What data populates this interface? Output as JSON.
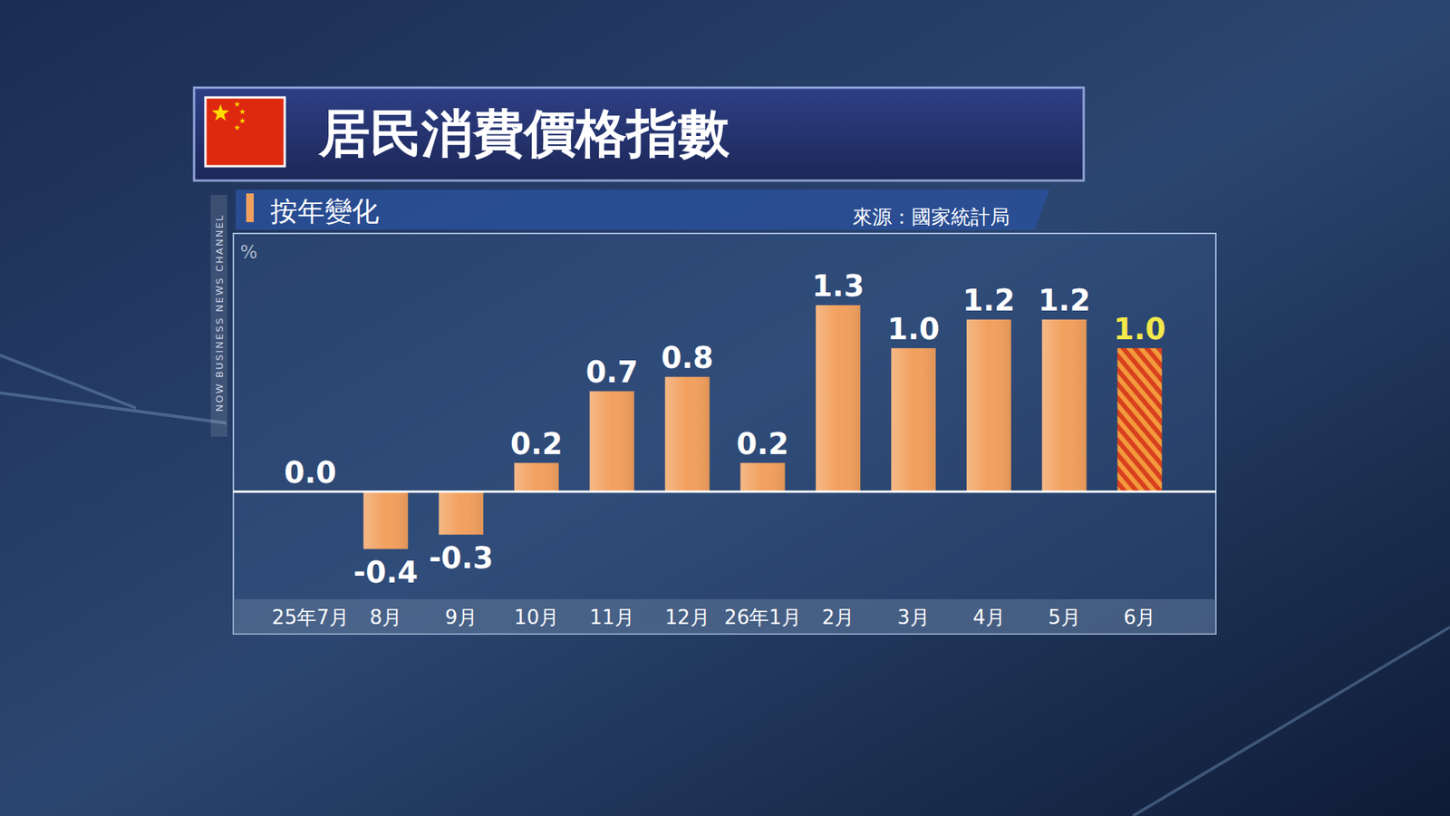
{
  "chart_data": {
    "type": "bar",
    "title": "居民消費價格指數",
    "subtitle": "按年變化",
    "source": "來源：國家統計局",
    "unit": "%",
    "watermark": "NOW BUSINESS NEWS CHANNEL",
    "categories": [
      "25年7月",
      "8月",
      "9月",
      "10月",
      "11月",
      "12月",
      "26年1月",
      "2月",
      "3月",
      "4月",
      "5月",
      "6月"
    ],
    "values": [
      0.0,
      -0.4,
      -0.3,
      0.2,
      0.7,
      0.8,
      0.2,
      1.3,
      1.0,
      1.2,
      1.2,
      1.0
    ],
    "value_labels": [
      "0.0",
      "-0.4",
      "-0.3",
      "0.2",
      "0.7",
      "0.8",
      "0.2",
      "1.3",
      "1.0",
      "1.2",
      "1.2",
      "1.0"
    ],
    "colors": [
      "#f2a05e",
      "#f2a05e",
      "#f2a05e",
      "#f2a05e",
      "#f2a05e",
      "#f2a05e",
      "#f2a05e",
      "#f2a05e",
      "#f2a05e",
      "#f2a05e",
      "#f2a05e",
      "#d8401e"
    ],
    "ylim": [
      -0.75,
      1.8
    ],
    "yticks": [
      0
    ],
    "grid": false,
    "data_labels": true,
    "tick_labels": "x"
  }
}
